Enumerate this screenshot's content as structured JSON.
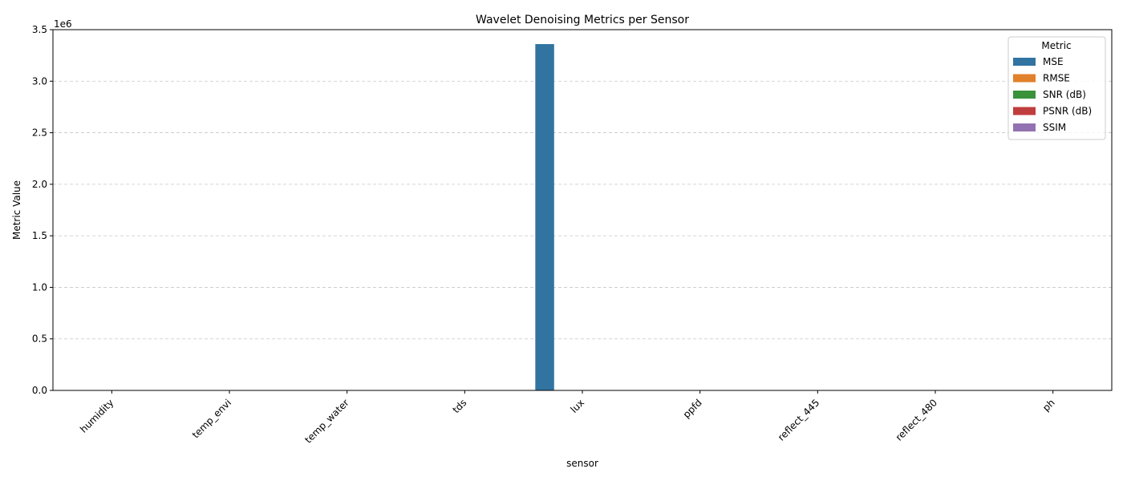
{
  "chart_data": {
    "type": "bar",
    "title": "Wavelet Denoising Metrics per Sensor",
    "xlabel": "sensor",
    "ylabel": "Metric Value",
    "y_scale_label": "1e6",
    "ylim": [
      0,
      3500000
    ],
    "y_ticks": [
      0,
      500000,
      1000000,
      1500000,
      2000000,
      2500000,
      3000000,
      3500000
    ],
    "y_tick_labels": [
      "0.0",
      "0.5",
      "1.0",
      "1.5",
      "2.0",
      "2.5",
      "3.0",
      "3.5"
    ],
    "grid": true,
    "legend_title": "Metric",
    "legend_position": "top-right",
    "categories": [
      "humidity",
      "temp_envi",
      "temp_water",
      "tds",
      "lux",
      "ppfd",
      "reflect_445",
      "reflect_480",
      "ph"
    ],
    "series": [
      {
        "name": "MSE",
        "color": "#3274a1",
        "values": [
          0,
          0,
          0,
          0,
          3360000,
          0,
          0,
          0,
          0
        ]
      },
      {
        "name": "RMSE",
        "color": "#e1812c",
        "values": [
          0,
          0,
          0,
          0,
          0,
          0,
          0,
          0,
          0
        ]
      },
      {
        "name": "SNR (dB)",
        "color": "#3a923a",
        "values": [
          0,
          0,
          0,
          0,
          0,
          0,
          0,
          0,
          0
        ]
      },
      {
        "name": "PSNR (dB)",
        "color": "#c03d3e",
        "values": [
          0,
          0,
          0,
          0,
          0,
          0,
          0,
          0,
          0
        ]
      },
      {
        "name": "SSIM",
        "color": "#9372b2",
        "values": [
          0,
          0,
          0,
          0,
          0,
          0,
          0,
          0,
          0
        ]
      }
    ]
  }
}
